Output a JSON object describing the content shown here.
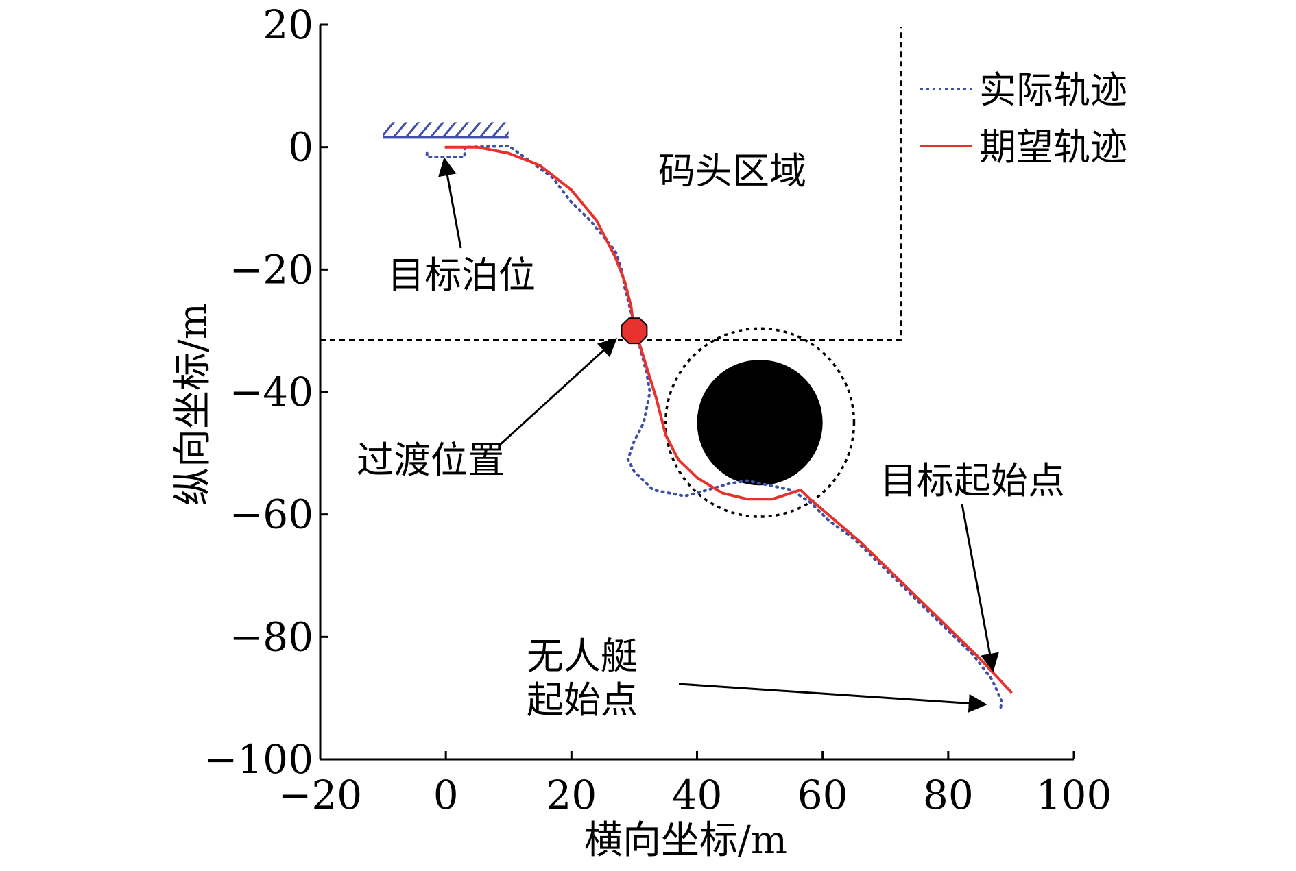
{
  "chart_data": {
    "type": "line",
    "xlabel": "横向坐标/m",
    "ylabel": "纵向坐标/m",
    "xlim": [
      -20,
      100
    ],
    "ylim": [
      -100,
      20
    ],
    "xticks": [
      -20,
      0,
      20,
      40,
      60,
      80,
      100
    ],
    "yticks": [
      20,
      0,
      -20,
      -40,
      -60,
      -80,
      -100
    ],
    "x_tick_labels": [
      "−20",
      "0",
      "20",
      "40",
      "60",
      "80",
      "100"
    ],
    "y_tick_labels": [
      "20",
      "0",
      "−20",
      "−40",
      "−60",
      "−80",
      "−100"
    ],
    "grid": false,
    "legend_position": "top-right",
    "series": [
      {
        "name": "实际轨迹",
        "color": "#3f4fa8",
        "style": "dotted",
        "points": [
          [
            -3,
            -1
          ],
          [
            -3,
            -1.6
          ],
          [
            3,
            -1.6
          ],
          [
            3,
            -1
          ],
          [
            3,
            0
          ],
          [
            10,
            0.2
          ],
          [
            13,
            -2
          ],
          [
            17,
            -5
          ],
          [
            20,
            -9
          ],
          [
            23,
            -12
          ],
          [
            25,
            -14.5
          ],
          [
            27,
            -17
          ],
          [
            28,
            -20
          ],
          [
            28.5,
            -23
          ],
          [
            29,
            -25
          ],
          [
            29.5,
            -27
          ],
          [
            30,
            -30
          ],
          [
            31,
            -33
          ],
          [
            32,
            -37
          ],
          [
            32.5,
            -40
          ],
          [
            31.5,
            -45
          ],
          [
            30,
            -48
          ],
          [
            29,
            -51
          ],
          [
            30,
            -53
          ],
          [
            33,
            -56
          ],
          [
            38,
            -57
          ],
          [
            40,
            -56.5
          ],
          [
            45,
            -55
          ],
          [
            48,
            -54.5
          ],
          [
            55,
            -56
          ],
          [
            58,
            -58
          ],
          [
            61,
            -61
          ],
          [
            65,
            -64
          ],
          [
            68,
            -67
          ],
          [
            72,
            -71
          ],
          [
            76,
            -75
          ],
          [
            80,
            -79
          ],
          [
            84,
            -83
          ],
          [
            87,
            -87
          ],
          [
            88.5,
            -90.5
          ],
          [
            88.3,
            -92
          ]
        ]
      },
      {
        "name": "期望轨迹",
        "color": "#e8322d",
        "style": "solid",
        "points": [
          [
            0,
            0
          ],
          [
            5,
            0
          ],
          [
            10,
            -1
          ],
          [
            15,
            -3
          ],
          [
            20,
            -7
          ],
          [
            24,
            -12
          ],
          [
            27,
            -18
          ],
          [
            28.5,
            -22
          ],
          [
            29.5,
            -26
          ],
          [
            30,
            -30
          ],
          [
            30.8,
            -32
          ],
          [
            32,
            -36
          ],
          [
            33.5,
            -41
          ],
          [
            35,
            -47
          ],
          [
            37,
            -51
          ],
          [
            40,
            -54
          ],
          [
            44,
            -56.5
          ],
          [
            48,
            -57.5
          ],
          [
            52,
            -57.5
          ],
          [
            55,
            -56.5
          ],
          [
            56.5,
            -56
          ],
          [
            58,
            -57.5
          ],
          [
            62,
            -61
          ],
          [
            66,
            -64.5
          ],
          [
            70,
            -68.5
          ],
          [
            75,
            -73.5
          ],
          [
            80,
            -78.5
          ],
          [
            85,
            -83.5
          ],
          [
            90,
            -89
          ]
        ]
      }
    ],
    "legend": [
      "实际轨迹",
      "期望轨迹"
    ],
    "annotations": {
      "dock_region": "码头区域",
      "target_berth": "目标泊位",
      "transition": "过渡位置",
      "target_start": "目标起始点",
      "usv_start_line1": "无人艇",
      "usv_start_line2": "起始点"
    },
    "obstacle": {
      "center": [
        50,
        -45
      ],
      "radius": 10,
      "safety_radius": 15,
      "color": "#000000"
    },
    "dock_boundary": {
      "x": 72.5,
      "y": -31.5
    },
    "transition_point": [
      30,
      -30
    ],
    "berth_top_y": 1.6,
    "berth_x_range": [
      -10,
      10
    ]
  }
}
